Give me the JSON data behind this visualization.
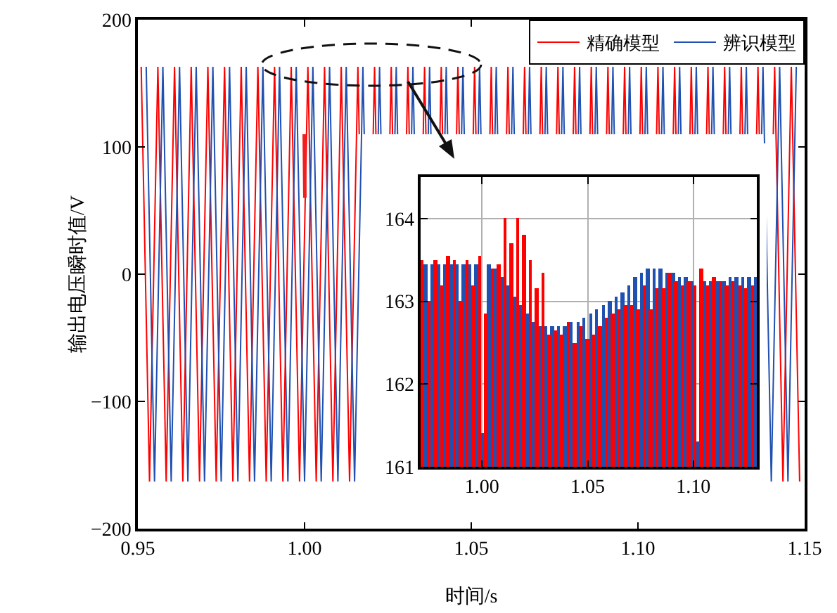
{
  "chart_data": [
    {
      "type": "line",
      "xlabel": "时间/s",
      "ylabel": "输出电压瞬时值/V",
      "xlim": [
        0.95,
        1.15
      ],
      "ylim": [
        -200,
        200
      ],
      "xticks": [
        {
          "value": 0.95,
          "label": "0.95"
        },
        {
          "value": 1.0,
          "label": "1.00"
        },
        {
          "value": 1.05,
          "label": "1.05"
        },
        {
          "value": 1.1,
          "label": "1.10"
        },
        {
          "value": 1.15,
          "label": "1.15"
        }
      ],
      "yticks": [
        {
          "value": -200,
          "label": "−200"
        },
        {
          "value": -100,
          "label": "−100"
        },
        0,
        100,
        200
      ],
      "grid": false,
      "legend": "top right",
      "line_style": "solid",
      "marker": "none",
      "series": [
        {
          "name": "精确模型",
          "color": "#ff0000",
          "x": [
            0.951,
            0.9535,
            0.956,
            0.9585,
            0.961,
            0.9635,
            0.966,
            0.9685,
            0.971,
            0.9735,
            0.976,
            0.9785,
            0.981,
            0.9835,
            0.986,
            0.9885,
            0.991,
            0.9935,
            0.996,
            0.9985,
            1.001,
            1.0035,
            1.006,
            1.0085,
            1.011,
            1.0135,
            1.016,
            1.0164,
            1.0185,
            1.0206,
            1.021,
            1.0214,
            1.0235,
            1.0256,
            1.026,
            1.0264,
            1.0285,
            1.0306,
            1.031,
            1.0314,
            1.0335,
            1.0356,
            1.036,
            1.0364,
            1.0385,
            1.0406,
            1.041,
            1.0414,
            1.0435,
            1.0456,
            1.046,
            1.0464,
            1.0485,
            1.0506,
            1.051,
            1.0514,
            1.0535,
            1.0556,
            1.056,
            1.0564,
            1.0585,
            1.0606,
            1.061,
            1.0614,
            1.0635,
            1.0656,
            1.066,
            1.0664,
            1.0685,
            1.0706,
            1.071,
            1.0714,
            1.0735,
            1.0756,
            1.076,
            1.0764,
            1.0785,
            1.0806,
            1.081,
            1.0814,
            1.0835,
            1.0856,
            1.086,
            1.0864,
            1.0885,
            1.0906,
            1.091,
            1.0914,
            1.0935,
            1.0956,
            1.096,
            1.0964,
            1.0985,
            1.1006,
            1.101,
            1.1014,
            1.1035,
            1.1056,
            1.106,
            1.1064,
            1.1085,
            1.1106,
            1.111,
            1.1114,
            1.1135,
            1.1156,
            1.116,
            1.1164,
            1.1185,
            1.1206,
            1.121,
            1.1214,
            1.1235,
            1.1256,
            1.126,
            1.1264,
            1.1285,
            1.1306,
            1.131,
            1.1314,
            1.1335,
            1.1356,
            1.136,
            1.1364,
            1.1385,
            1.1406,
            1.141,
            1.1435,
            1.146,
            1.1485
          ],
          "values": [
            163,
            -163,
            163,
            -163,
            163,
            -163,
            163,
            -163,
            163,
            -163,
            163,
            -163,
            163,
            -163,
            163,
            -163,
            163,
            -163,
            163,
            -163,
            163,
            -163,
            163,
            -163,
            163,
            -163,
            163,
            110,
            null,
            110,
            163,
            110,
            null,
            110,
            163,
            110,
            null,
            110,
            163,
            110,
            null,
            110,
            163,
            110,
            null,
            110,
            163,
            110,
            null,
            110,
            163,
            110,
            null,
            110,
            163,
            110,
            null,
            110,
            163,
            110,
            null,
            110,
            163,
            110,
            null,
            110,
            163,
            110,
            null,
            110,
            163,
            110,
            null,
            110,
            163,
            110,
            null,
            110,
            163,
            110,
            null,
            110,
            163,
            110,
            null,
            110,
            163,
            110,
            null,
            110,
            163,
            110,
            null,
            110,
            163,
            110,
            null,
            110,
            163,
            110,
            null,
            110,
            163,
            110,
            null,
            110,
            163,
            110,
            null,
            110,
            163,
            110,
            null,
            110,
            163,
            110,
            null,
            110,
            163,
            110,
            null,
            110,
            163,
            110,
            null,
            110,
            163,
            -163,
            163,
            -163
          ]
        },
        {
          "name": "辨识模型",
          "color": "#2050b0",
          "x": [
            0.9525,
            0.955,
            0.9575,
            0.96,
            0.9625,
            0.965,
            0.9675,
            0.97,
            0.9725,
            0.975,
            0.9775,
            0.98,
            0.9825,
            0.985,
            0.9875,
            0.99,
            0.9925,
            0.995,
            0.9975,
            1.0,
            1.0025,
            1.005,
            1.0075,
            1.01,
            1.0125,
            1.015,
            1.0175,
            1.0179,
            1.02,
            1.0221,
            1.0225,
            1.0229,
            1.025,
            1.0271,
            1.0275,
            1.0279,
            1.03,
            1.0321,
            1.0325,
            1.0329,
            1.035,
            1.0371,
            1.0375,
            1.0379,
            1.04,
            1.0421,
            1.0425,
            1.0429,
            1.045,
            1.0471,
            1.0475,
            1.0479,
            1.05,
            1.0521,
            1.0525,
            1.0529,
            1.055,
            1.0571,
            1.0575,
            1.0579,
            1.06,
            1.0621,
            1.0625,
            1.0629,
            1.065,
            1.0671,
            1.0675,
            1.0679,
            1.07,
            1.0721,
            1.0725,
            1.0729,
            1.075,
            1.0771,
            1.0775,
            1.0779,
            1.08,
            1.0821,
            1.0825,
            1.0829,
            1.085,
            1.0871,
            1.0875,
            1.0879,
            1.09,
            1.0921,
            1.0925,
            1.0929,
            1.095,
            1.0971,
            1.0975,
            1.0979,
            1.1,
            1.1021,
            1.1025,
            1.1029,
            1.105,
            1.1071,
            1.1075,
            1.1079,
            1.11,
            1.1121,
            1.1125,
            1.1129,
            1.115,
            1.1171,
            1.1175,
            1.1179,
            1.12,
            1.1221,
            1.1225,
            1.1229,
            1.125,
            1.1271,
            1.1275,
            1.1279,
            1.13,
            1.1321,
            1.1325,
            1.1329,
            1.135,
            1.1371,
            1.1375,
            1.14,
            1.1425,
            1.145,
            1.1475
          ],
          "values": [
            163,
            -163,
            163,
            -163,
            163,
            -163,
            163,
            -163,
            163,
            -163,
            163,
            -163,
            163,
            -163,
            163,
            -163,
            163,
            -163,
            163,
            -163,
            163,
            -163,
            163,
            -163,
            163,
            -163,
            163,
            110,
            null,
            110,
            163,
            110,
            null,
            110,
            163,
            110,
            null,
            110,
            163,
            110,
            null,
            110,
            163,
            110,
            null,
            110,
            163,
            110,
            null,
            110,
            163,
            110,
            null,
            110,
            163,
            110,
            null,
            110,
            163,
            110,
            null,
            110,
            163,
            110,
            null,
            110,
            163,
            110,
            null,
            110,
            163,
            110,
            null,
            110,
            163,
            110,
            null,
            110,
            163,
            110,
            null,
            110,
            163,
            110,
            null,
            110,
            163,
            110,
            null,
            110,
            163,
            110,
            null,
            110,
            163,
            110,
            null,
            110,
            163,
            110,
            null,
            110,
            163,
            110,
            null,
            110,
            163,
            110,
            null,
            110,
            163,
            110,
            null,
            110,
            163,
            110,
            null,
            110,
            163,
            110,
            null,
            110,
            163,
            -163,
            163,
            -163,
            163
          ]
        },
        {
          "color": "#f02020",
          "x": [
            0.9999,
            1.0001
          ],
          "values": [
            110,
            60
          ]
        }
      ]
    },
    {
      "type": "bar",
      "xlim": [
        0.971,
        1.13
      ],
      "ylim": [
        161,
        164.5
      ],
      "xticks": [
        {
          "value": 1.0,
          "label": "1.00"
        },
        {
          "value": 1.05,
          "label": "1.05"
        },
        {
          "value": 1.1,
          "label": "1.10"
        }
      ],
      "yticks": [
        161,
        162,
        163,
        164
      ],
      "grid": true,
      "series": [
        {
          "color": "#2050b0",
          "x": [
            0.9735,
            0.9765,
            0.9795,
            0.9825,
            0.9855,
            0.9885,
            0.9915,
            0.9945,
            0.9975,
            1.0005,
            1.0035,
            1.0065,
            1.0095,
            1.0125,
            1.0155,
            1.0185,
            1.0215,
            1.0245,
            1.0275,
            1.0305,
            1.0335,
            1.0365,
            1.0395,
            1.0425,
            1.0455,
            1.0485,
            1.0515,
            1.0545,
            1.0575,
            1.0605,
            1.0635,
            1.0665,
            1.0695,
            1.0725,
            1.0755,
            1.0785,
            1.0815,
            1.0845,
            1.0875,
            1.0905,
            1.0935,
            1.0965,
            1.0995,
            1.1025,
            1.1055,
            1.1085,
            1.1115,
            1.1145,
            1.1175,
            1.1205,
            1.1235,
            1.1265,
            1.1295
          ],
          "values": [
            163.45,
            163.45,
            163.45,
            163.45,
            163.45,
            163.45,
            163.45,
            163.45,
            163.45,
            161.4,
            163.45,
            163.4,
            163.3,
            163.2,
            163.05,
            162.95,
            162.85,
            162.75,
            162.7,
            162.7,
            162.7,
            162.7,
            162.7,
            162.75,
            162.75,
            162.8,
            162.85,
            162.9,
            162.95,
            163.0,
            163.05,
            163.1,
            163.2,
            163.3,
            163.35,
            163.4,
            163.4,
            163.4,
            163.35,
            163.35,
            163.3,
            163.3,
            163.25,
            161.3,
            163.25,
            163.25,
            163.25,
            163.25,
            163.3,
            163.3,
            163.3,
            163.3,
            163.3
          ]
        },
        {
          "color": "#ff0000",
          "x": [
            0.972,
            0.975,
            0.978,
            0.981,
            0.984,
            0.987,
            0.99,
            0.993,
            0.996,
            0.999,
            1.002,
            1.005,
            1.008,
            1.011,
            1.014,
            1.017,
            1.02,
            1.023,
            1.026,
            1.029,
            1.032,
            1.035,
            1.038,
            1.041,
            1.044,
            1.047,
            1.05,
            1.053,
            1.056,
            1.059,
            1.062,
            1.065,
            1.068,
            1.071,
            1.074,
            1.077,
            1.08,
            1.083,
            1.086,
            1.089,
            1.092,
            1.095,
            1.098,
            1.101,
            1.104,
            1.107,
            1.11,
            1.113,
            1.116,
            1.119,
            1.122,
            1.125,
            1.128
          ],
          "values": [
            163.5,
            163.0,
            163.5,
            163.2,
            163.55,
            163.5,
            163.0,
            163.5,
            163.2,
            163.55,
            162.85,
            163.4,
            163.45,
            164.0,
            163.7,
            164.0,
            163.8,
            163.5,
            163.15,
            163.35,
            162.6,
            162.65,
            162.6,
            162.75,
            162.5,
            162.7,
            162.55,
            162.6,
            162.7,
            162.8,
            162.85,
            162.9,
            162.95,
            162.95,
            162.9,
            163.2,
            162.9,
            163.15,
            163.15,
            163.35,
            163.25,
            163.2,
            163.25,
            163.2,
            163.4,
            163.2,
            163.3,
            163.25,
            163.2,
            163.25,
            163.2,
            163.15,
            163.2
          ]
        }
      ]
    }
  ]
}
